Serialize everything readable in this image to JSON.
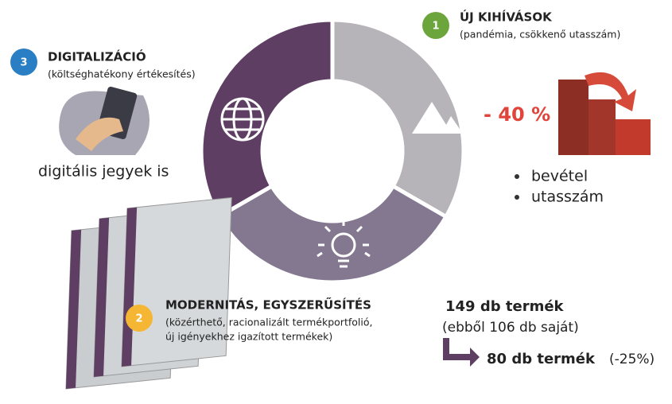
{
  "challenges": {
    "number": "1",
    "title": "ÚJ KIHÍVÁSOK",
    "subtitle": "(pandémia, csökkenő utasszám)",
    "drop": "- 40 %",
    "bullets": [
      "bevétel",
      "utasszám"
    ]
  },
  "digitalization": {
    "number": "3",
    "title": "DIGITALIZÁCIÓ",
    "subtitle": "(költséghatékony értékesítés)",
    "note": "digitális jegyek is"
  },
  "modernity": {
    "number": "2",
    "title": "MODERNITÁS, EGYSZERŰSÍTÉS",
    "lines": [
      "(közérthető, racionalizált termékportfolió,",
      "új igényekhez igazított termékek)"
    ]
  },
  "products": {
    "before": "149 db termék",
    "own": "(ebből 106 db saját)",
    "after": "80 db termék",
    "change": "(-25%)"
  }
}
